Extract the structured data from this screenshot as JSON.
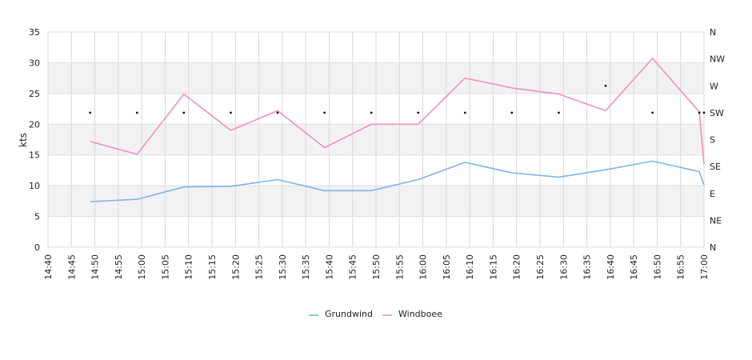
{
  "chart_data": {
    "type": "line",
    "ylabel": "kts",
    "ylim": [
      0,
      35
    ],
    "yticks": [
      "0",
      "5",
      "10",
      "15",
      "20",
      "25",
      "30",
      "35"
    ],
    "y2ticks": [
      "N",
      "NE",
      "E",
      "SE",
      "S",
      "SW",
      "W",
      "NW",
      "N"
    ],
    "xticks": [
      "14:40",
      "14:45",
      "14:50",
      "14:55",
      "15:00",
      "15:05",
      "15:10",
      "15:15",
      "15:20",
      "15:25",
      "15:30",
      "15:35",
      "15:40",
      "15:45",
      "15:50",
      "15:55",
      "16:00",
      "16:05",
      "16:10",
      "16:15",
      "16:20",
      "16:25",
      "16:30",
      "16:35",
      "16:40",
      "16:45",
      "16:50",
      "16:55",
      "17:00"
    ],
    "grid": true,
    "legend_position": "bottom-center",
    "series": [
      {
        "name": "Grundwind",
        "color": "#7cb5ec",
        "x": [
          "14:49",
          "14:59",
          "15:09",
          "15:19",
          "15:29",
          "15:39",
          "15:49",
          "15:59",
          "16:09",
          "16:19",
          "16:29",
          "16:39",
          "16:49",
          "16:59",
          "17:00"
        ],
        "values": [
          7.4,
          7.8,
          9.8,
          9.9,
          11.0,
          9.2,
          9.2,
          11.0,
          13.8,
          12.1,
          11.4,
          12.6,
          14.0,
          12.3,
          10.1
        ]
      },
      {
        "name": "Windboee",
        "color": "#f28fc1",
        "x": [
          "14:49",
          "14:59",
          "15:09",
          "15:19",
          "15:29",
          "15:39",
          "15:49",
          "15:59",
          "16:09",
          "16:19",
          "16:29",
          "16:39",
          "16:49",
          "16:59",
          "17:00"
        ],
        "values": [
          17.2,
          15.1,
          24.9,
          19.0,
          22.2,
          16.2,
          20.0,
          20.0,
          27.5,
          25.9,
          24.9,
          22.2,
          30.7,
          22.0,
          13.5
        ]
      }
    ],
    "direction_markers": {
      "x": [
        "14:49",
        "14:59",
        "15:09",
        "15:19",
        "15:29",
        "15:39",
        "15:49",
        "15:59",
        "16:09",
        "16:19",
        "16:29",
        "16:39",
        "16:49",
        "16:59",
        "17:00"
      ],
      "direction": [
        "SW",
        "SW",
        "SW",
        "SW",
        "SW",
        "SW",
        "SW",
        "SW",
        "SW",
        "SW",
        "SW",
        "W",
        "SW",
        "SW",
        "SW"
      ]
    }
  }
}
